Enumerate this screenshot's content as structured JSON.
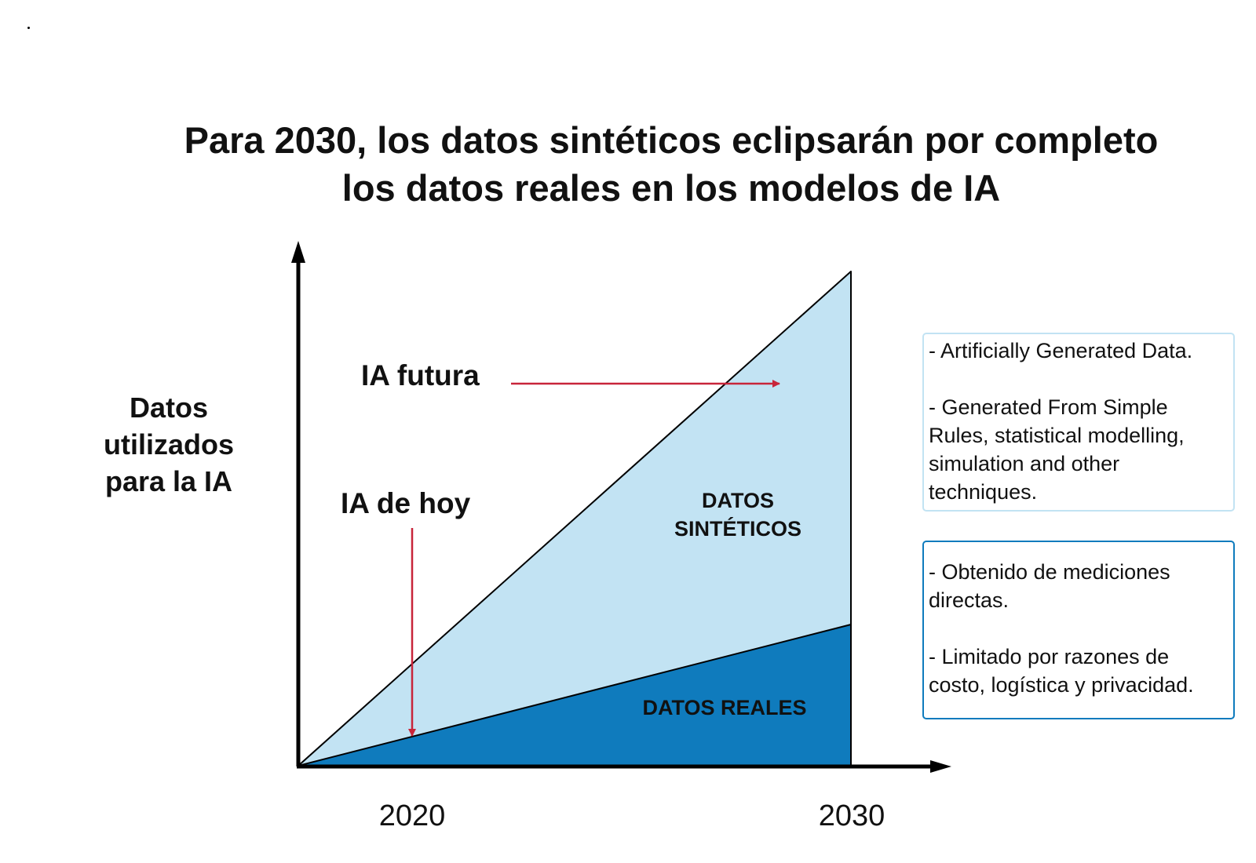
{
  "title": {
    "line1": "Para 2030, los datos sintéticos eclipsarán por completo",
    "line2": "los datos reales en los modelos de IA"
  },
  "y_axis_label": [
    "Datos",
    "utilizados",
    "para la IA"
  ],
  "x_axis_ticks": [
    "2020",
    "2030"
  ],
  "annotations": {
    "future_ai": "IA futura",
    "today_ai": "IA de hoy"
  },
  "regions": {
    "synthetic": {
      "label_line1": "DATOS",
      "label_line2": "SINTÉTICOS",
      "color": "#c2e3f3"
    },
    "real": {
      "label": "DATOS REALES",
      "color": "#0f7bbd"
    }
  },
  "callouts": {
    "synthetic": [
      " - Artificially Generated Data.",
      " - Generated From Simple Rules, statistical modelling, simulation and other techniques."
    ],
    "real": [
      " - Obtenido de mediciones directas.",
      " - Limitado por razones de costo, logística y privacidad."
    ]
  },
  "colors": {
    "arrow": "#c8253a",
    "axis": "#000000",
    "callout_real_border": "#0f7bbd",
    "callout_synthetic_border": "#c2e3f3"
  }
}
